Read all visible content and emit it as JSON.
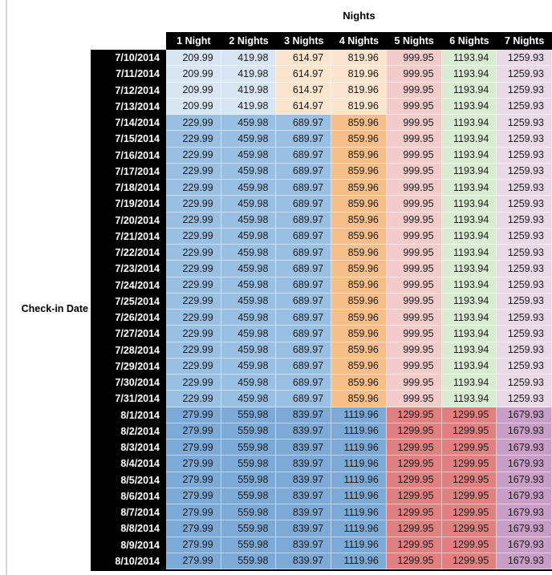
{
  "chart_data": {
    "type": "table",
    "title": "Nights",
    "row_axis_label": "Check-in Date",
    "column_headers": [
      "1 Night",
      "2 Nights",
      "3 Nights",
      "4 Nights",
      "5 Nights",
      "6 Nights",
      "7 Nights"
    ],
    "rows": [
      {
        "date": "7/10/2014",
        "values": [
          209.99,
          419.98,
          614.97,
          819.96,
          999.95,
          1193.94,
          1259.93
        ],
        "palette": "A"
      },
      {
        "date": "7/11/2014",
        "values": [
          209.99,
          419.98,
          614.97,
          819.96,
          999.95,
          1193.94,
          1259.93
        ],
        "palette": "A"
      },
      {
        "date": "7/12/2014",
        "values": [
          209.99,
          419.98,
          614.97,
          819.96,
          999.95,
          1193.94,
          1259.93
        ],
        "palette": "A"
      },
      {
        "date": "7/13/2014",
        "values": [
          209.99,
          419.98,
          614.97,
          819.96,
          999.95,
          1193.94,
          1259.93
        ],
        "palette": "A"
      },
      {
        "date": "7/14/2014",
        "values": [
          229.99,
          459.98,
          689.97,
          859.96,
          999.95,
          1193.94,
          1259.93
        ],
        "palette": "B"
      },
      {
        "date": "7/15/2014",
        "values": [
          229.99,
          459.98,
          689.97,
          859.96,
          999.95,
          1193.94,
          1259.93
        ],
        "palette": "B"
      },
      {
        "date": "7/16/2014",
        "values": [
          229.99,
          459.98,
          689.97,
          859.96,
          999.95,
          1193.94,
          1259.93
        ],
        "palette": "B"
      },
      {
        "date": "7/17/2014",
        "values": [
          229.99,
          459.98,
          689.97,
          859.96,
          999.95,
          1193.94,
          1259.93
        ],
        "palette": "B"
      },
      {
        "date": "7/18/2014",
        "values": [
          229.99,
          459.98,
          689.97,
          859.96,
          999.95,
          1193.94,
          1259.93
        ],
        "palette": "B"
      },
      {
        "date": "7/19/2014",
        "values": [
          229.99,
          459.98,
          689.97,
          859.96,
          999.95,
          1193.94,
          1259.93
        ],
        "palette": "B"
      },
      {
        "date": "7/20/2014",
        "values": [
          229.99,
          459.98,
          689.97,
          859.96,
          999.95,
          1193.94,
          1259.93
        ],
        "palette": "B"
      },
      {
        "date": "7/21/2014",
        "values": [
          229.99,
          459.98,
          689.97,
          859.96,
          999.95,
          1193.94,
          1259.93
        ],
        "palette": "B"
      },
      {
        "date": "7/22/2014",
        "values": [
          229.99,
          459.98,
          689.97,
          859.96,
          999.95,
          1193.94,
          1259.93
        ],
        "palette": "B"
      },
      {
        "date": "7/23/2014",
        "values": [
          229.99,
          459.98,
          689.97,
          859.96,
          999.95,
          1193.94,
          1259.93
        ],
        "palette": "B"
      },
      {
        "date": "7/24/2014",
        "values": [
          229.99,
          459.98,
          689.97,
          859.96,
          999.95,
          1193.94,
          1259.93
        ],
        "palette": "B"
      },
      {
        "date": "7/25/2014",
        "values": [
          229.99,
          459.98,
          689.97,
          859.96,
          999.95,
          1193.94,
          1259.93
        ],
        "palette": "B"
      },
      {
        "date": "7/26/2014",
        "values": [
          229.99,
          459.98,
          689.97,
          859.96,
          999.95,
          1193.94,
          1259.93
        ],
        "palette": "B"
      },
      {
        "date": "7/27/2014",
        "values": [
          229.99,
          459.98,
          689.97,
          859.96,
          999.95,
          1193.94,
          1259.93
        ],
        "palette": "B"
      },
      {
        "date": "7/28/2014",
        "values": [
          229.99,
          459.98,
          689.97,
          859.96,
          999.95,
          1193.94,
          1259.93
        ],
        "palette": "B"
      },
      {
        "date": "7/29/2014",
        "values": [
          229.99,
          459.98,
          689.97,
          859.96,
          999.95,
          1193.94,
          1259.93
        ],
        "palette": "B"
      },
      {
        "date": "7/30/2014",
        "values": [
          229.99,
          459.98,
          689.97,
          859.96,
          999.95,
          1193.94,
          1259.93
        ],
        "palette": "B"
      },
      {
        "date": "7/31/2014",
        "values": [
          229.99,
          459.98,
          689.97,
          859.96,
          999.95,
          1193.94,
          1259.93
        ],
        "palette": "B"
      },
      {
        "date": "8/1/2014",
        "values": [
          279.99,
          559.98,
          839.97,
          1119.96,
          1299.95,
          1299.95,
          1679.93
        ],
        "palette": "C"
      },
      {
        "date": "8/2/2014",
        "values": [
          279.99,
          559.98,
          839.97,
          1119.96,
          1299.95,
          1299.95,
          1679.93
        ],
        "palette": "C"
      },
      {
        "date": "8/3/2014",
        "values": [
          279.99,
          559.98,
          839.97,
          1119.96,
          1299.95,
          1299.95,
          1679.93
        ],
        "palette": "C"
      },
      {
        "date": "8/4/2014",
        "values": [
          279.99,
          559.98,
          839.97,
          1119.96,
          1299.95,
          1299.95,
          1679.93
        ],
        "palette": "C"
      },
      {
        "date": "8/5/2014",
        "values": [
          279.99,
          559.98,
          839.97,
          1119.96,
          1299.95,
          1299.95,
          1679.93
        ],
        "palette": "C"
      },
      {
        "date": "8/6/2014",
        "values": [
          279.99,
          559.98,
          839.97,
          1119.96,
          1299.95,
          1299.95,
          1679.93
        ],
        "palette": "C"
      },
      {
        "date": "8/7/2014",
        "values": [
          279.99,
          559.98,
          839.97,
          1119.96,
          1299.95,
          1299.95,
          1679.93
        ],
        "palette": "C"
      },
      {
        "date": "8/8/2014",
        "values": [
          279.99,
          559.98,
          839.97,
          1119.96,
          1299.95,
          1299.95,
          1679.93
        ],
        "palette": "C"
      },
      {
        "date": "8/9/2014",
        "values": [
          279.99,
          559.98,
          839.97,
          1119.96,
          1299.95,
          1299.95,
          1679.93
        ],
        "palette": "C"
      },
      {
        "date": "8/10/2014",
        "values": [
          279.99,
          559.98,
          839.97,
          1119.96,
          1299.95,
          1299.95,
          1679.93
        ],
        "palette": "C"
      }
    ],
    "palettes": {
      "A": [
        "paleBlue",
        "paleBlue",
        "paleOrange",
        "paleOrange",
        "pink",
        "green",
        "lavender"
      ],
      "B": [
        "midBlue",
        "midBlue",
        "midBlue",
        "midOrange",
        "pink",
        "green",
        "lavender"
      ],
      "C": [
        "deepBlue",
        "deepBlue",
        "deepBlue",
        "deepBlue",
        "salmon",
        "salmon",
        "mauve"
      ]
    },
    "colors": {
      "paleBlue": "#D8E6F3",
      "paleOrange": "#FBE5CE",
      "midBlue": "#99BFE3",
      "midOrange": "#F6BF89",
      "deepBlue": "#7CA9D6",
      "pink": "#F2CBCB",
      "green": "#DAECD2",
      "lavender": "#EADAE8",
      "salmon": "#E08080",
      "mauve": "#C89EC6",
      "header_bg": "#000000",
      "header_text": "#FFFFFF"
    },
    "layout": {
      "grid": "off",
      "legend": "none",
      "cell_text_align": "right"
    }
  }
}
